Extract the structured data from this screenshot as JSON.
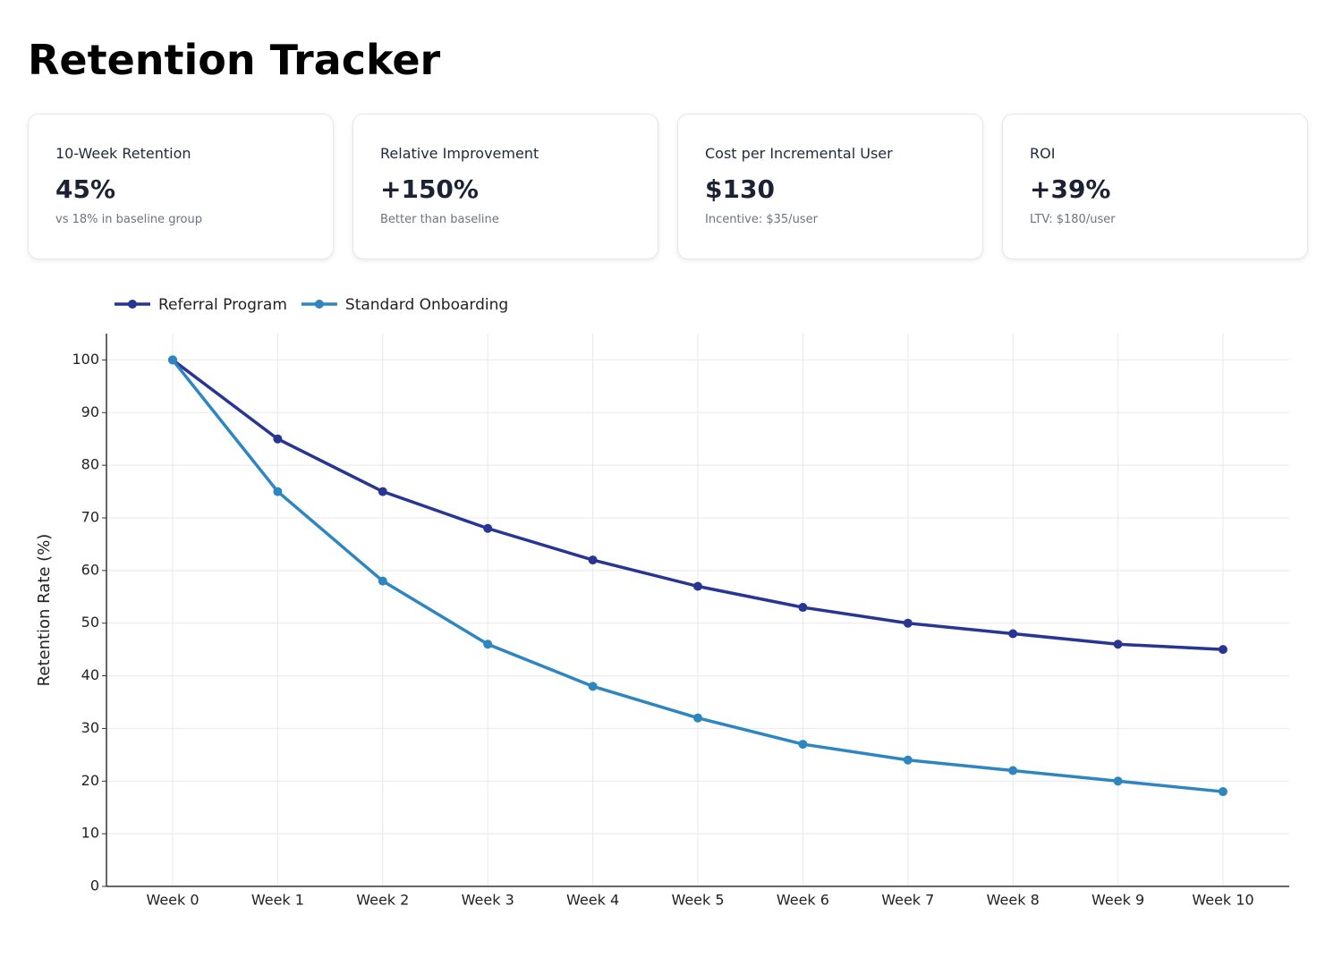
{
  "header": {
    "title": "Retention Tracker"
  },
  "cards": [
    {
      "label": "10-Week Retention",
      "value": "45%",
      "note": "vs 18% in baseline group"
    },
    {
      "label": "Relative Improvement",
      "value": "+150%",
      "note": "Better than baseline"
    },
    {
      "label": "Cost per Incremental User",
      "value": "$130",
      "note": "Incentive: $35/user"
    },
    {
      "label": "ROI",
      "value": "+39%",
      "note": "LTV: $180/user"
    }
  ],
  "chart_data": {
    "type": "line",
    "y_label": "Retention Rate (%)",
    "categories": [
      "Week 0",
      "Week 1",
      "Week 2",
      "Week 3",
      "Week 4",
      "Week 5",
      "Week 6",
      "Week 7",
      "Week 8",
      "Week 9",
      "Week 10"
    ],
    "series": [
      {
        "name": "Referral Program",
        "color": "#283593",
        "values": [
          100,
          85,
          75,
          68,
          62,
          57,
          53,
          50,
          48,
          46,
          45
        ]
      },
      {
        "name": "Standard Onboarding",
        "color": "#2e86c1",
        "values": [
          100,
          75,
          58,
          46,
          38,
          32,
          27,
          24,
          22,
          20,
          18
        ]
      }
    ],
    "ylim": [
      0,
      105
    ],
    "yticks": [
      0,
      10,
      20,
      30,
      40,
      50,
      60,
      70,
      80,
      90,
      100
    ],
    "grid": true
  }
}
